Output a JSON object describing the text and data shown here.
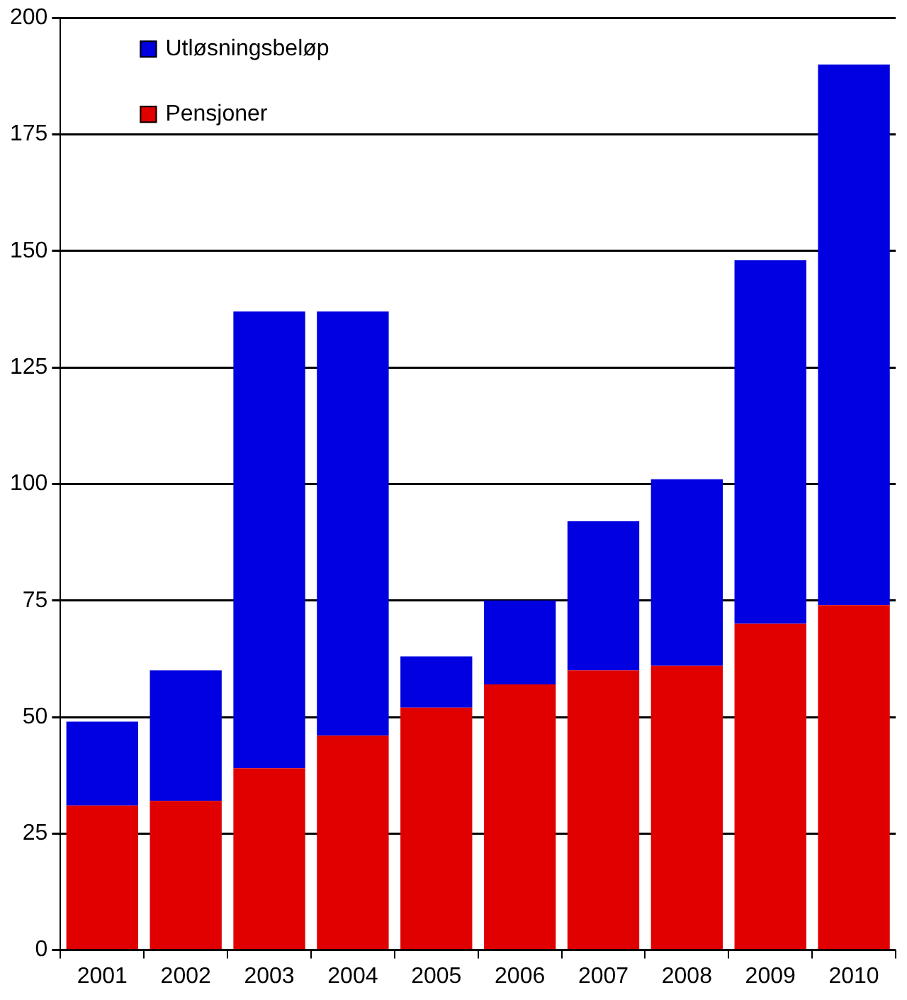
{
  "chart_data": {
    "type": "bar",
    "stacked": true,
    "categories": [
      "2001",
      "2002",
      "2003",
      "2004",
      "2005",
      "2006",
      "2007",
      "2008",
      "2009",
      "2010"
    ],
    "series": [
      {
        "name": "Pensjoner",
        "color": "#e00000",
        "values": [
          31,
          32,
          39,
          46,
          52,
          57,
          60,
          61,
          70,
          74
        ]
      },
      {
        "name": "Utløsningsbeløp",
        "color": "#0000e0",
        "values": [
          18,
          28,
          98,
          91,
          11,
          18,
          32,
          40,
          78,
          116
        ]
      }
    ],
    "ylim": [
      0,
      200
    ],
    "yticks": [
      0,
      25,
      50,
      75,
      100,
      125,
      150,
      175,
      200
    ],
    "grid": "y",
    "legend": "top left"
  }
}
